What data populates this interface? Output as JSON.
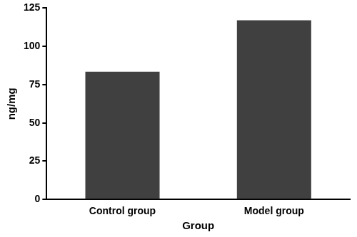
{
  "chart_data": {
    "type": "bar",
    "x_label": "Group",
    "y_label": "ng/mg",
    "categories": [
      "Control group",
      "Model group"
    ],
    "values": [
      83.5,
      117
    ],
    "color": "#404040",
    "ylim": [
      0,
      125
    ],
    "yticks": [
      0,
      25,
      50,
      75,
      100,
      125
    ],
    "grid": false
  }
}
